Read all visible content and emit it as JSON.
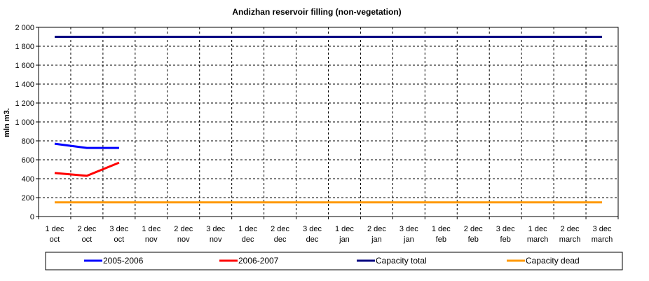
{
  "chart_data": {
    "type": "line",
    "title": "Andizhan reservoir filling  (non-vegetation)",
    "xlabel": "",
    "ylabel": "mln m3.",
    "ylim": [
      0,
      2000
    ],
    "y_ticks": [
      "0",
      "200",
      "400",
      "600",
      "800",
      "1 000",
      "1 200",
      "1 400",
      "1 600",
      "1 800",
      "2 000"
    ],
    "categories": [
      [
        "1 dec",
        "oct"
      ],
      [
        "2 dec",
        "oct"
      ],
      [
        "3 dec",
        "oct"
      ],
      [
        "1 dec",
        "nov"
      ],
      [
        "2 dec",
        "nov"
      ],
      [
        "3 dec",
        "nov"
      ],
      [
        "1 dec",
        "dec"
      ],
      [
        "2 dec",
        "dec"
      ],
      [
        "3 dec",
        "dec"
      ],
      [
        "1 dec",
        "jan"
      ],
      [
        "2 dec",
        "jan"
      ],
      [
        "3 dec",
        "jan"
      ],
      [
        "1 dec",
        "feb"
      ],
      [
        "2 dec",
        "feb"
      ],
      [
        "3 dec",
        "feb"
      ],
      [
        "1 dec",
        "march"
      ],
      [
        "2 dec",
        "march"
      ],
      [
        "3 dec",
        "march"
      ]
    ],
    "grid": true,
    "legend_position": "bottom",
    "series": [
      {
        "name": "2005-2006",
        "color": "#0000ff",
        "values": [
          770,
          725,
          725,
          null,
          null,
          null,
          null,
          null,
          null,
          null,
          null,
          null,
          null,
          null,
          null,
          null,
          null,
          null
        ]
      },
      {
        "name": "2006-2007",
        "color": "#ff0000",
        "values": [
          460,
          430,
          570,
          null,
          null,
          null,
          null,
          null,
          null,
          null,
          null,
          null,
          null,
          null,
          null,
          null,
          null,
          null
        ]
      },
      {
        "name": "Capacity total",
        "color": "#000080",
        "values": [
          1900,
          1900,
          1900,
          1900,
          1900,
          1900,
          1900,
          1900,
          1900,
          1900,
          1900,
          1900,
          1900,
          1900,
          1900,
          1900,
          1900,
          1900
        ]
      },
      {
        "name": "Capacity dead",
        "color": "#ff9900",
        "values": [
          150,
          150,
          150,
          150,
          150,
          150,
          150,
          150,
          150,
          150,
          150,
          150,
          150,
          150,
          150,
          150,
          150,
          150
        ]
      }
    ]
  }
}
